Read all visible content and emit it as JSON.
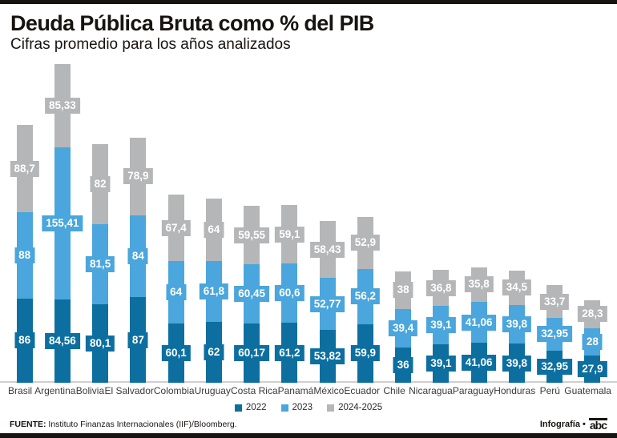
{
  "header": {
    "title": "Deuda Pública Bruta como % del PIB",
    "subtitle": "Cifras promedio para los años analizados"
  },
  "chart_data": {
    "type": "bar",
    "stacked": true,
    "title": "Deuda Pública Bruta como % del PIB",
    "subtitle": "Cifras promedio para los años analizados",
    "ylabel": "% del PIB",
    "grid": false,
    "legend_position": "bottom",
    "categories": [
      "Brasil",
      "Argentina",
      "Bolivia",
      "El Salvador",
      "Colombia",
      "Uruguay",
      "Costa Rica",
      "Panamá",
      "México",
      "Ecuador",
      "Chile",
      "Nicaragua",
      "Paraguay",
      "Honduras",
      "Perú",
      "Guatemala"
    ],
    "series": [
      {
        "name": "2022",
        "color": "#0d6fa0",
        "values": [
          86,
          84.56,
          80.1,
          87,
          60.1,
          62,
          60.17,
          61.2,
          53.82,
          59.9,
          36,
          39.1,
          41.06,
          39.8,
          32.95,
          27.9
        ],
        "labels": [
          "86",
          "84,56",
          "80,1",
          "87",
          "60,1",
          "62",
          "60,17",
          "61,2",
          "53,82",
          "59,9",
          "36",
          "39,1",
          "41,06",
          "39,8",
          "32,95",
          "27,9"
        ]
      },
      {
        "name": "2023",
        "color": "#4aa6dc",
        "values": [
          88,
          155.41,
          81.5,
          84,
          64,
          61.8,
          60.45,
          60.6,
          52.77,
          56.2,
          39.4,
          39.1,
          41.06,
          39.8,
          32.95,
          28
        ],
        "labels": [
          "88",
          "155,41",
          "81,5",
          "84",
          "64",
          "61,8",
          "60,45",
          "60,6",
          "52,77",
          "56,2",
          "39,4",
          "39,1",
          "41,06",
          "39,8",
          "32,95",
          "28"
        ]
      },
      {
        "name": "2024-2025",
        "color": "#b5b6b8",
        "values": [
          88.7,
          85.33,
          82,
          78.9,
          67.4,
          64,
          59.55,
          59.1,
          58.43,
          52.9,
          38,
          36.8,
          35.8,
          34.5,
          33.7,
          28.3
        ],
        "labels": [
          "88,7",
          "85,33",
          "82",
          "78,9",
          "67,4",
          "64",
          "59,55",
          "59,1",
          "58,43",
          "52,9",
          "38",
          "36,8",
          "35,8",
          "34,5",
          "33,7",
          "28,3"
        ]
      }
    ]
  },
  "footer": {
    "source_label": "FUENTE:",
    "source_text": " Instituto Finanzas Internacionales (IIF)/Bloomberg.",
    "credit": "Infografía •",
    "brand": "abc"
  }
}
